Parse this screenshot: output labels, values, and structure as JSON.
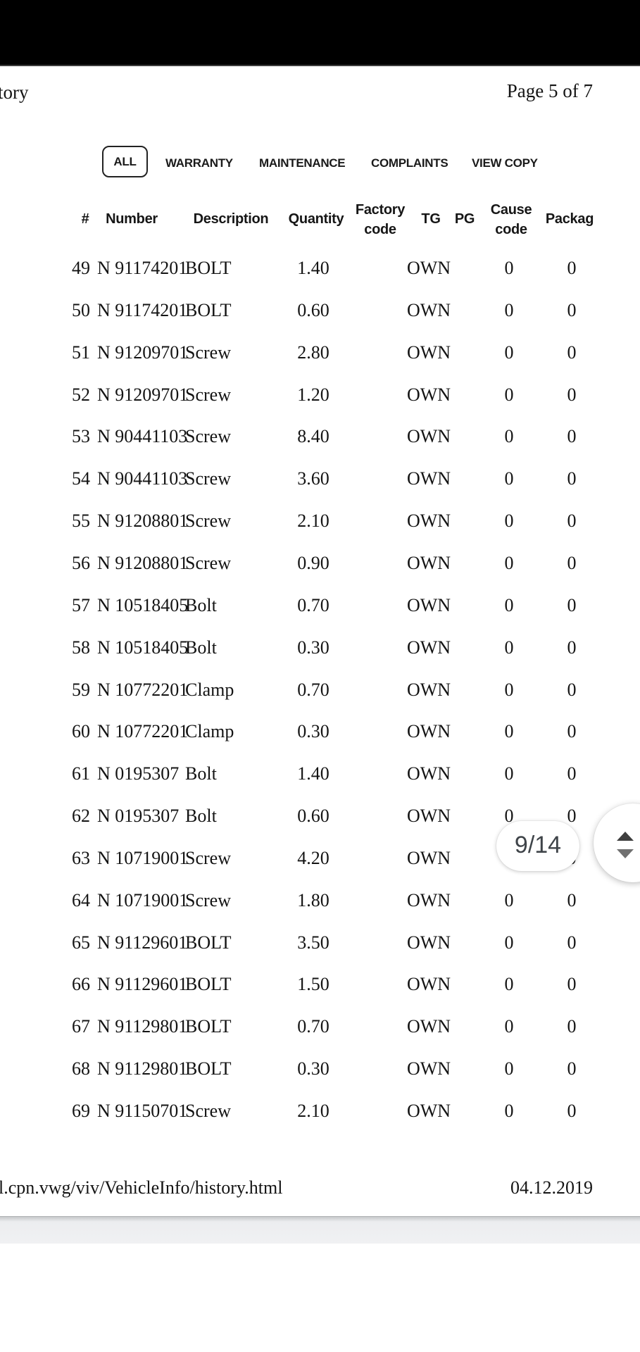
{
  "page": {
    "header_left": "tory",
    "header_right": "Page 5 of 7",
    "footer_url": "l.cpn.vwg/viv/VehicleInfo/history.html",
    "footer_date": "04.12.2019"
  },
  "tabs": {
    "all": "ALL",
    "warranty": "WARRANTY",
    "maintenance": "MAINTENANCE",
    "complaints": "COMPLAINTS",
    "view_copy": "VIEW COPY"
  },
  "table": {
    "columns": [
      "#",
      "Number",
      "Description",
      "Quantity",
      "Factory code",
      "TG",
      "PG",
      "Cause code",
      "Packag"
    ],
    "rows": [
      [
        "49",
        "N 91174201",
        "BOLT",
        "1.40",
        "",
        "OWN",
        "",
        "0",
        "0"
      ],
      [
        "50",
        "N 91174201",
        "BOLT",
        "0.60",
        "",
        "OWN",
        "",
        "0",
        "0"
      ],
      [
        "51",
        "N 91209701",
        "Screw",
        "2.80",
        "",
        "OWN",
        "",
        "0",
        "0"
      ],
      [
        "52",
        "N 91209701",
        "Screw",
        "1.20",
        "",
        "OWN",
        "",
        "0",
        "0"
      ],
      [
        "53",
        "N 90441103",
        "Screw",
        "8.40",
        "",
        "OWN",
        "",
        "0",
        "0"
      ],
      [
        "54",
        "N 90441103",
        "Screw",
        "3.60",
        "",
        "OWN",
        "",
        "0",
        "0"
      ],
      [
        "55",
        "N 91208801",
        "Screw",
        "2.10",
        "",
        "OWN",
        "",
        "0",
        "0"
      ],
      [
        "56",
        "N 91208801",
        "Screw",
        "0.90",
        "",
        "OWN",
        "",
        "0",
        "0"
      ],
      [
        "57",
        "N 10518405",
        "Bolt",
        "0.70",
        "",
        "OWN",
        "",
        "0",
        "0"
      ],
      [
        "58",
        "N 10518405",
        "Bolt",
        "0.30",
        "",
        "OWN",
        "",
        "0",
        "0"
      ],
      [
        "59",
        "N 10772201",
        "Clamp",
        "0.70",
        "",
        "OWN",
        "",
        "0",
        "0"
      ],
      [
        "60",
        "N 10772201",
        "Clamp",
        "0.30",
        "",
        "OWN",
        "",
        "0",
        "0"
      ],
      [
        "61",
        "N 0195307",
        "Bolt",
        "1.40",
        "",
        "OWN",
        "",
        "0",
        "0"
      ],
      [
        "62",
        "N 0195307",
        "Bolt",
        "0.60",
        "",
        "OWN",
        "",
        "0",
        "0"
      ],
      [
        "63",
        "N 10719001",
        "Screw",
        "4.20",
        "",
        "OWN",
        "",
        "0",
        "0"
      ],
      [
        "64",
        "N 10719001",
        "Screw",
        "1.80",
        "",
        "OWN",
        "",
        "0",
        "0"
      ],
      [
        "65",
        "N 91129601",
        "BOLT",
        "3.50",
        "",
        "OWN",
        "",
        "0",
        "0"
      ],
      [
        "66",
        "N 91129601",
        "BOLT",
        "1.50",
        "",
        "OWN",
        "",
        "0",
        "0"
      ],
      [
        "67",
        "N 91129801",
        "BOLT",
        "0.70",
        "",
        "OWN",
        "",
        "0",
        "0"
      ],
      [
        "68",
        "N 91129801",
        "BOLT",
        "0.30",
        "",
        "OWN",
        "",
        "0",
        "0"
      ],
      [
        "69",
        "N 91150701",
        "Screw",
        "2.10",
        "",
        "OWN",
        "",
        "0",
        "0"
      ]
    ]
  },
  "scroll": {
    "page_indicator": "9/14"
  }
}
